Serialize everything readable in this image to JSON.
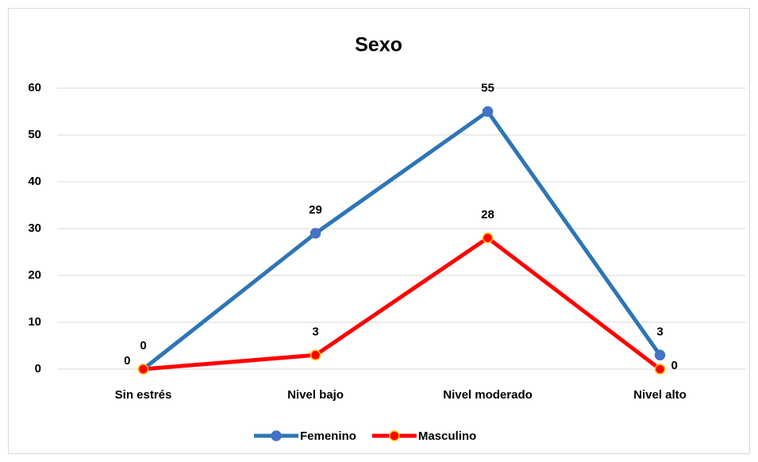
{
  "chart_data": {
    "type": "line",
    "title": "Sexo",
    "categories": [
      "Sin estrés",
      "Nivel bajo",
      "Nivel moderado",
      "Nivel alto"
    ],
    "series": [
      {
        "name": "Femenino",
        "color": "#2e75b6",
        "marker_color": "#4472c4",
        "values": [
          0,
          29,
          55,
          3
        ]
      },
      {
        "name": "Masculino",
        "color": "#ff0000",
        "marker_color": "#ff0000",
        "values": [
          0,
          3,
          28,
          0
        ]
      }
    ],
    "ylim": [
      0,
      60
    ],
    "yticks": [
      0,
      10,
      20,
      30,
      40,
      50,
      60
    ],
    "grid": true,
    "legend": "bottom"
  }
}
